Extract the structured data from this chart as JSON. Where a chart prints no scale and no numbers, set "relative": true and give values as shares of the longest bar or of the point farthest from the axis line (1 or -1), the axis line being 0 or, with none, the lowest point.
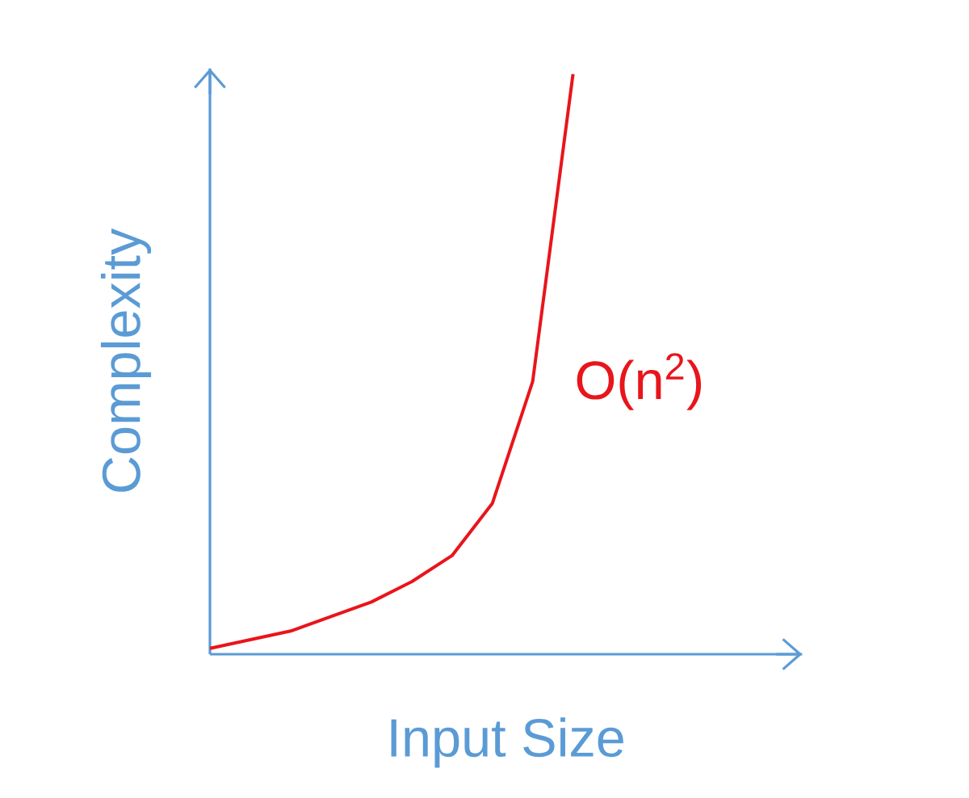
{
  "chart_data": {
    "type": "line",
    "xlabel": "Input Size",
    "ylabel": "Complexity",
    "relative": true,
    "categories": [
      null,
      null,
      null,
      null,
      null,
      null,
      null,
      null,
      null,
      null
    ],
    "series": [
      {
        "name": "O(n$^{2}$)",
        "color": "#e8151b",
        "values": [
          0.01,
          0.025,
          0.04,
          0.065,
          0.09,
          0.125,
          0.17,
          0.26,
          0.47,
          1.0
        ]
      }
    ]
  }
}
